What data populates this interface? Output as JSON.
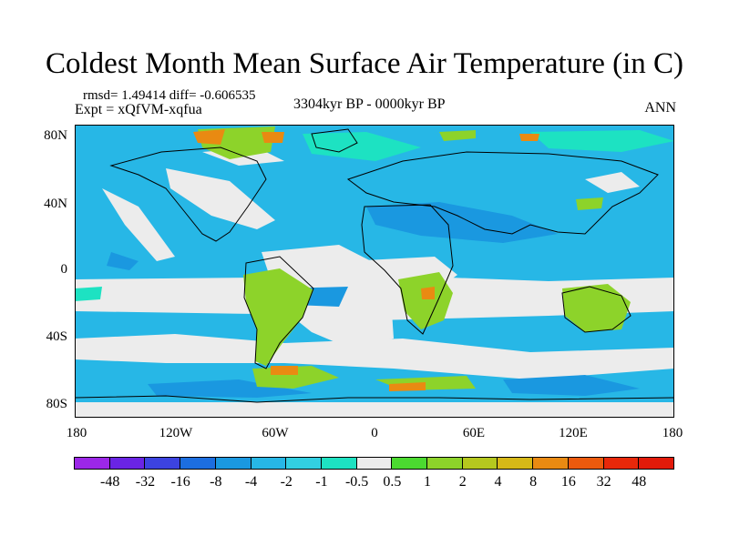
{
  "title": "Coldest Month Mean Surface Air Temperature (in C)",
  "stats": {
    "rmsd_label": "rmsd= 1.49414 diff= -0.606535",
    "expt_label": "Expt = xQfVM-xqfua",
    "period_label": "3304kyr BP - 0000kyr BP",
    "season_label": "ANN"
  },
  "map": {
    "projection": "cylindrical equidistant",
    "lon_range": [
      -180,
      180
    ],
    "lat_range": [
      -90,
      90
    ],
    "y_ticks": [
      "80N",
      "40N",
      "0",
      "40S",
      "80S"
    ],
    "x_ticks": [
      "180",
      "120W",
      "60W",
      "0",
      "60E",
      "120E",
      "180"
    ],
    "dominant_colors": {
      "ocean_cool": "#27b7e6",
      "neutral": "#ececec",
      "land_warm": "#8dd32a",
      "hot_spot": "#e98a12"
    }
  },
  "colorbar": {
    "labels": [
      "-48",
      "-32",
      "-16",
      "-8",
      "-4",
      "-2",
      "-1",
      "-0.5",
      "0.5",
      "1",
      "2",
      "4",
      "8",
      "16",
      "32",
      "48"
    ],
    "colors": [
      "#9c27e8",
      "#6a24e4",
      "#3c43e0",
      "#1c6ee0",
      "#1a98e0",
      "#27b7e6",
      "#32cfe2",
      "#1de2c2",
      "#ececec",
      "#4bda30",
      "#8dd32a",
      "#b5c81e",
      "#d6b817",
      "#e98a12",
      "#ec5a0d",
      "#e8280a",
      "#e21a0a"
    ]
  }
}
